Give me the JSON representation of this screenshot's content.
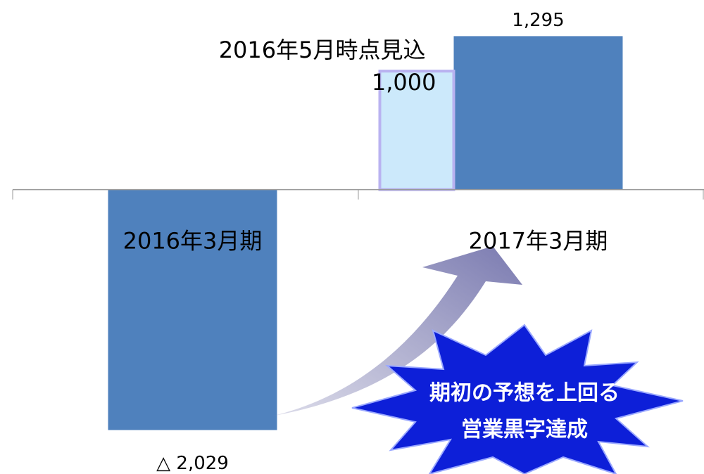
{
  "chart_data": {
    "type": "bar",
    "categories": [
      "2016年3月期",
      "2017年3月期"
    ],
    "series": [
      {
        "color": "#4f81bd",
        "values": [
          -2029,
          1295
        ],
        "value_labels": [
          "△ 2,029",
          "1,295"
        ]
      },
      {
        "name": "2016年5月時点見込",
        "color": "#cce9fb",
        "values": [
          null,
          1000
        ],
        "value_labels": [
          null,
          "1,000"
        ]
      }
    ],
    "ylim": [
      -2400,
      1600
    ],
    "annotations": [
      "期初の予想を上回る",
      "営業黒字達成"
    ]
  }
}
